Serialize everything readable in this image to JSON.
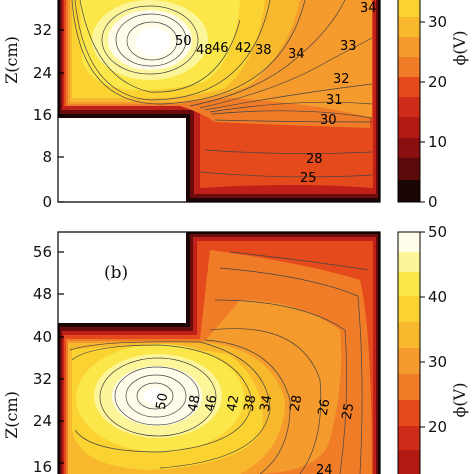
{
  "chart_data": [
    {
      "type": "heatmap",
      "panel_label": "",
      "ylabel": "Z(cm)",
      "yticks": [
        "0",
        "8",
        "16",
        "24",
        "32"
      ],
      "ylim_visible": [
        0,
        39
      ],
      "colorbar_label": "ϕ(V)",
      "colorbar_ticks": [
        "0",
        "10",
        "20",
        "30"
      ],
      "colorbar_range": [
        0,
        50
      ],
      "contour_labels": [
        "50",
        "48",
        "46",
        "42",
        "38",
        "34",
        "34",
        "33",
        "32",
        "31",
        "30",
        "28",
        "25"
      ]
    },
    {
      "type": "heatmap",
      "panel_label": "(b)",
      "ylabel": "Z(cm)",
      "yticks": [
        "16",
        "24",
        "32",
        "40",
        "48",
        "56"
      ],
      "ylim_visible": [
        16,
        59
      ],
      "colorbar_label": "ϕ(V)",
      "colorbar_ticks": [
        "20",
        "30",
        "40",
        "50"
      ],
      "colorbar_range": [
        0,
        50
      ],
      "contour_labels": [
        "50",
        "48",
        "46",
        "42",
        "38",
        "34",
        "28",
        "26",
        "25",
        "24"
      ]
    }
  ],
  "colors": {
    "c0": "#1c0505",
    "c1": "#5a0a0a",
    "c2": "#a01010",
    "c3": "#d02a18",
    "c4": "#e8561e",
    "c5": "#f07c28",
    "c6": "#f59a2c",
    "c7": "#f8b82e",
    "c8": "#fad232",
    "c9": "#fbe74a",
    "c10": "#fdf59a",
    "c11": "#fffcea"
  }
}
